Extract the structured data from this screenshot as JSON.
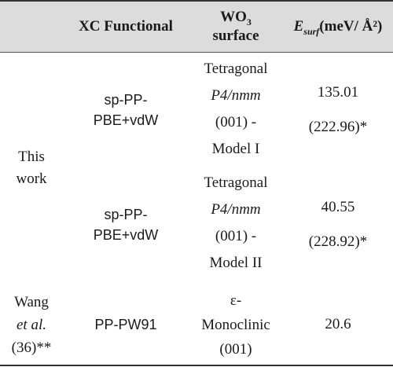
{
  "header": {
    "col2": "XC Functional",
    "col3_line1_prefix": "WO",
    "col3_line1_sub": "3",
    "col3_line2": "surface",
    "col4_symbol": "E",
    "col4_sub": "surf",
    "col4_unit": "(meV/ Å²)"
  },
  "rows": [
    {
      "group": [
        "This",
        "work"
      ],
      "functional": [
        "sp-PP-",
        "PBE+vdW"
      ],
      "surface": [
        "Tetragonal",
        "P4/nmm",
        "(001) -",
        "Model I"
      ],
      "energy": [
        "135.01",
        "(222.96)*"
      ]
    },
    {
      "functional": [
        "sp-PP-",
        "PBE+vdW"
      ],
      "surface": [
        "Tetragonal",
        "P4/nmm",
        "(001) -",
        "Model II"
      ],
      "energy": [
        "40.55",
        "(228.92)*"
      ]
    },
    {
      "group": [
        "Wang",
        "et al.",
        "(36)**"
      ],
      "functional": [
        "PP-PW91"
      ],
      "surface": [
        "ε-",
        "Monoclinic",
        "(001)"
      ],
      "energy": [
        "20.6"
      ]
    }
  ]
}
